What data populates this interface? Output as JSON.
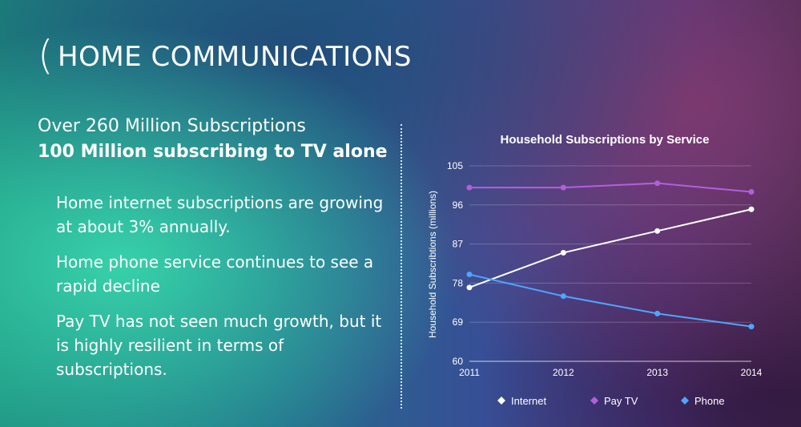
{
  "header": {
    "paren": "(",
    "title": "HOME COMMUNICATIONS"
  },
  "summary": {
    "line1": "Over 260 Million Subscriptions",
    "line2": "100 Million subscribing to TV alone"
  },
  "bullets": [
    "Home internet subscriptions are growing at about 3% annually.",
    "Home phone service continues to see a rapid decline",
    "Pay TV has not seen much growth, but it is highly resilient in terms of subscriptions."
  ],
  "chart_data": {
    "type": "line",
    "title": "Household Subscriptions by Service",
    "xlabel": "",
    "ylabel": "Household Subscribtions (millions)",
    "x": [
      "2011",
      "2012",
      "2013",
      "2014"
    ],
    "ylim": [
      60,
      105
    ],
    "yticks": [
      60,
      69,
      78,
      87,
      96,
      105
    ],
    "grid": true,
    "legend": "bottom",
    "series": [
      {
        "name": "Internet",
        "color": "#ffffff",
        "values": [
          77,
          85,
          90,
          95
        ]
      },
      {
        "name": "Pay TV",
        "color": "#b25fdc",
        "values": [
          100,
          100,
          101,
          99
        ]
      },
      {
        "name": "Phone",
        "color": "#4da6ff",
        "values": [
          80,
          75,
          71,
          68
        ]
      }
    ]
  }
}
